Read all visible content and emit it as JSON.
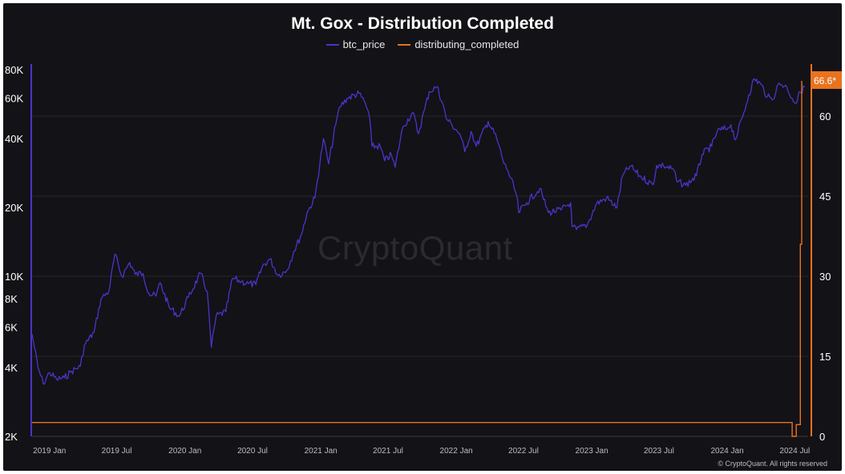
{
  "chart_data": {
    "type": "line",
    "title": "Mt. Gox - Distribution Completed",
    "legend": {
      "placement": "top-center",
      "entries": [
        "btc_price",
        "distributing_completed"
      ]
    },
    "colors": {
      "btc_price": "#4a35c9",
      "distributing_completed": "#e8731f",
      "background": "#131217"
    },
    "x_ticks": [
      "2019 Jan",
      "2019 Jul",
      "2020 Jan",
      "2020 Jul",
      "2021 Jan",
      "2021 Jul",
      "2022 Jan",
      "2022 Jul",
      "2023 Jan",
      "2023 Jul",
      "2024 Jan",
      "2024 Jul"
    ],
    "y_left": {
      "scale": "log",
      "range": [
        2000,
        85000
      ],
      "tick_values": [
        2000,
        4000,
        6000,
        8000,
        10000,
        20000,
        40000,
        60000,
        80000
      ],
      "tick_labels": [
        "2K",
        "4K",
        "6K",
        "8K",
        "10K",
        "20K",
        "40K",
        "60K",
        "80K"
      ]
    },
    "y_right": {
      "scale": "linear",
      "range": [
        0,
        69
      ],
      "tick_values": [
        0,
        15,
        30,
        45,
        60
      ],
      "tick_labels": [
        "0",
        "15",
        "30",
        "45",
        "60"
      ]
    },
    "series": [
      {
        "name": "btc_price",
        "axis": "left",
        "x": [
          "2018-11-15",
          "2018-12-01",
          "2018-12-15",
          "2019-01-01",
          "2019-01-20",
          "2019-02-10",
          "2019-03-01",
          "2019-03-25",
          "2019-04-05",
          "2019-05-01",
          "2019-05-20",
          "2019-06-10",
          "2019-06-26",
          "2019-07-15",
          "2019-08-05",
          "2019-08-20",
          "2019-09-10",
          "2019-09-26",
          "2019-10-15",
          "2019-10-26",
          "2019-11-20",
          "2019-12-17",
          "2020-01-10",
          "2020-02-12",
          "2020-03-01",
          "2020-03-12",
          "2020-03-25",
          "2020-04-20",
          "2020-05-08",
          "2020-06-01",
          "2020-06-20",
          "2020-07-10",
          "2020-07-28",
          "2020-08-17",
          "2020-09-08",
          "2020-10-01",
          "2020-10-21",
          "2020-11-10",
          "2020-11-25",
          "2020-12-16",
          "2021-01-08",
          "2021-01-22",
          "2021-02-10",
          "2021-02-21",
          "2021-03-13",
          "2021-04-14",
          "2021-05-01",
          "2021-05-12",
          "2021-05-19",
          "2021-06-10",
          "2021-06-22",
          "2021-07-10",
          "2021-07-20",
          "2021-08-10",
          "2021-09-06",
          "2021-09-21",
          "2021-10-08",
          "2021-10-20",
          "2021-11-10",
          "2021-11-25",
          "2021-12-05",
          "2021-12-20",
          "2022-01-10",
          "2022-01-24",
          "2022-02-10",
          "2022-02-24",
          "2022-03-28",
          "2022-04-20",
          "2022-05-10",
          "2022-05-20",
          "2022-06-13",
          "2022-06-18",
          "2022-07-10",
          "2022-08-14",
          "2022-09-06",
          "2022-10-10",
          "2022-11-05",
          "2022-11-09",
          "2022-11-21",
          "2022-12-20",
          "2023-01-14",
          "2023-02-10",
          "2023-03-10",
          "2023-03-25",
          "2023-04-14",
          "2023-05-10",
          "2023-06-15",
          "2023-06-25",
          "2023-07-13",
          "2023-08-10",
          "2023-08-18",
          "2023-09-11",
          "2023-10-10",
          "2023-10-25",
          "2023-11-20",
          "2023-12-05",
          "2024-01-03",
          "2024-01-11",
          "2024-01-23",
          "2024-02-15",
          "2024-02-28",
          "2024-03-14",
          "2024-04-01",
          "2024-04-18",
          "2024-05-01",
          "2024-05-20",
          "2024-06-10",
          "2024-06-24",
          "2024-07-05",
          "2024-07-15",
          "2024-07-27"
        ],
        "values": [
          5600,
          4000,
          3400,
          3800,
          3550,
          3600,
          3850,
          4050,
          5000,
          5700,
          8000,
          8600,
          12500,
          10000,
          11500,
          10200,
          10300,
          8400,
          8200,
          9400,
          7300,
          6700,
          8100,
          10300,
          8600,
          4900,
          6700,
          7000,
          9800,
          9500,
          9300,
          9200,
          11100,
          11900,
          10100,
          10600,
          12900,
          15300,
          19000,
          22000,
          40000,
          31000,
          46000,
          55000,
          60000,
          63000,
          57000,
          50000,
          37000,
          37000,
          32000,
          34000,
          30000,
          45000,
          52000,
          42000,
          54000,
          64000,
          67500,
          57000,
          49000,
          46000,
          42000,
          35000,
          43000,
          37000,
          47500,
          40000,
          31000,
          29000,
          22500,
          19000,
          21000,
          24200,
          19000,
          19500,
          21000,
          16500,
          16000,
          16800,
          20800,
          22000,
          20000,
          27500,
          30300,
          27500,
          25100,
          30500,
          30500,
          29200,
          26000,
          25000,
          27500,
          34000,
          37000,
          43000,
          44500,
          46000,
          39500,
          52000,
          62000,
          73000,
          69000,
          61000,
          59000,
          70000,
          67000,
          60000,
          57000,
          64000,
          67000
        ]
      },
      {
        "name": "distributing_completed",
        "axis": "right",
        "x": [
          "2018-11-15",
          "2024-06-24",
          "2024-06-24",
          "2024-07-05",
          "2024-07-05",
          "2024-07-16",
          "2024-07-16",
          "2024-07-23",
          "2024-07-23",
          "2024-07-31"
        ],
        "values": [
          2.6,
          2.6,
          0,
          0,
          2.2,
          2.2,
          36,
          36,
          40,
          66.6
        ]
      }
    ],
    "last_value_badge": {
      "text": "66.6*",
      "value": 66.6
    },
    "watermark": "CryptoQuant",
    "copyright": "© CryptoQuant. All rights reserved"
  }
}
